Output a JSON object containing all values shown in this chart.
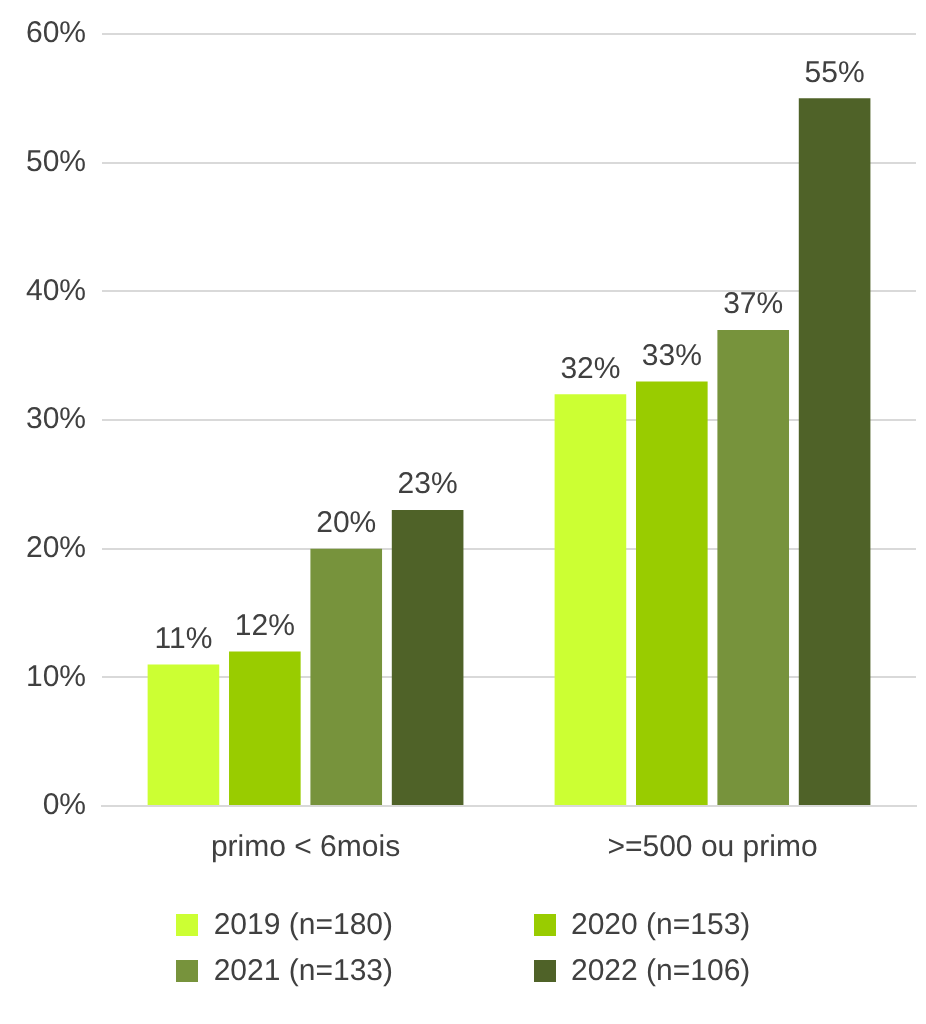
{
  "chart_data": {
    "type": "bar",
    "categories": [
      "primo < 6mois",
      ">=500 ou primo"
    ],
    "series": [
      {
        "name": "2019 (n=180)",
        "color": "#ccff33",
        "values": [
          11,
          32
        ],
        "value_labels": [
          "11%",
          "32%"
        ]
      },
      {
        "name": "2020 (n=153)",
        "color": "#99cc00",
        "values": [
          12,
          33
        ],
        "value_labels": [
          "12%",
          "33%"
        ]
      },
      {
        "name": "2021 (n=133)",
        "color": "#77933c",
        "values": [
          20,
          37
        ],
        "value_labels": [
          "20%",
          "37%"
        ]
      },
      {
        "name": "2022 (n=106)",
        "color": "#4f6228",
        "values": [
          23,
          55
        ],
        "value_labels": [
          "23%",
          "55%"
        ]
      }
    ],
    "ylim": [
      0,
      60
    ],
    "yticks": [
      {
        "value": 0,
        "label": "0%"
      },
      {
        "value": 10,
        "label": "10%"
      },
      {
        "value": 20,
        "label": "20%"
      },
      {
        "value": 30,
        "label": "30%"
      },
      {
        "value": 40,
        "label": "40%"
      },
      {
        "value": 50,
        "label": "50%"
      },
      {
        "value": 60,
        "label": "60%"
      }
    ],
    "grid": "y",
    "legend": "bottom"
  }
}
